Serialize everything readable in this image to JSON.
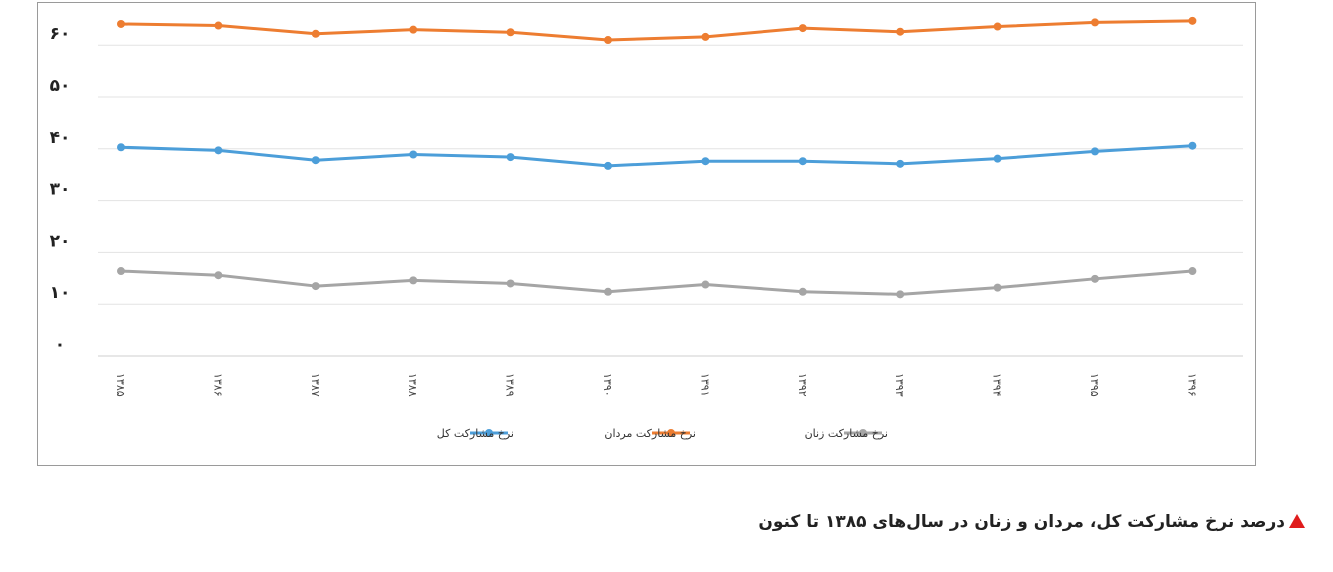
{
  "chart_data": {
    "type": "line",
    "categories": [
      "۱۳۸۵",
      "۱۳۸۶",
      "۱۳۸۷",
      "۱۳۸۸",
      "۱۳۸۹",
      "۱۳۹۰",
      "۱۳۹۱",
      "۱۳۹۲",
      "۱۳۹۳",
      "۱۳۹۴",
      "۱۳۹۵",
      "۱۳۹۶"
    ],
    "y_ticks": [
      0,
      10,
      20,
      30,
      40,
      50,
      60
    ],
    "y_tick_labels": [
      "۰",
      "۱۰",
      "۲۰",
      "۳۰",
      "۴۰",
      "۵۰",
      "۶۰"
    ],
    "ylim": [
      0,
      67
    ],
    "grid": true,
    "legend_position": "bottom",
    "series": [
      {
        "name": "نرخ مشارکت کل",
        "color": "#4c9ed9",
        "values": [
          40.3,
          39.7,
          37.8,
          38.9,
          38.4,
          36.7,
          37.6,
          37.6,
          37.1,
          38.1,
          39.5,
          40.6
        ]
      },
      {
        "name": "نرخ مشارکت مردان",
        "color": "#ed7d31",
        "values": [
          64.1,
          63.8,
          62.2,
          63.0,
          62.5,
          61.0,
          61.6,
          63.3,
          62.6,
          63.6,
          64.4,
          64.7
        ]
      },
      {
        "name": "نرخ مشارکت زنان",
        "color": "#a5a5a5",
        "values": [
          16.4,
          15.6,
          13.5,
          14.6,
          14.0,
          12.4,
          13.8,
          12.4,
          11.9,
          13.2,
          14.9,
          16.4
        ]
      }
    ]
  },
  "caption": {
    "text": "درصد نرخ مشارکت کل، مردان و زنان در سال‌های ۱۳۸۵ تا کنون",
    "marker_color": "#e01c1c"
  }
}
